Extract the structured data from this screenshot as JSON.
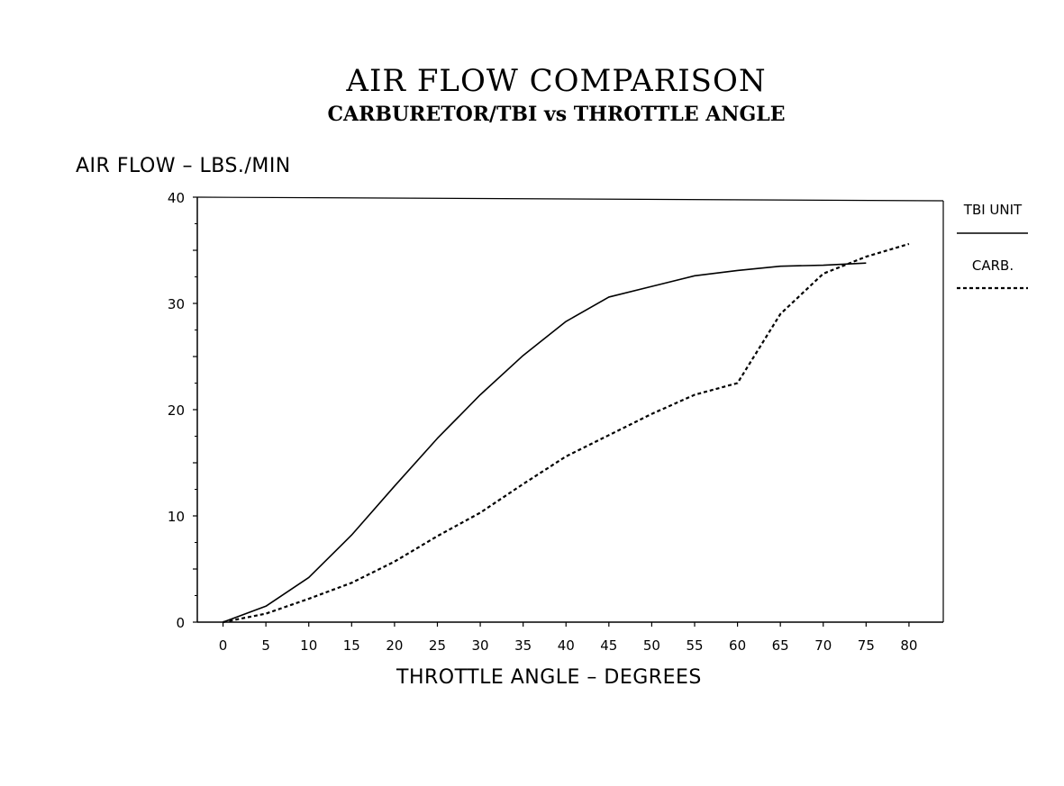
{
  "chart_data": {
    "type": "line",
    "title": "AIR FLOW COMPARISON",
    "subtitle": "CARBURETOR/TBI vs THROTTLE ANGLE",
    "xlabel": "THROTTLE ANGLE – DEGREES",
    "ylabel": "AIR FLOW – LBS./MIN",
    "x": [
      0,
      5,
      10,
      15,
      20,
      25,
      30,
      35,
      40,
      45,
      50,
      55,
      60,
      65,
      70,
      75,
      80
    ],
    "x_ticks": [
      "0",
      "5",
      "10",
      "15",
      "20",
      "25",
      "30",
      "35",
      "40",
      "45",
      "50",
      "55",
      "60",
      "65",
      "70",
      "75",
      "80"
    ],
    "y_ticks": [
      "0",
      "10",
      "20",
      "30",
      "40"
    ],
    "xlim": [
      -3,
      84
    ],
    "ylim": [
      0,
      40
    ],
    "grid": false,
    "legend_position": "right",
    "series": [
      {
        "name": "TBI UNIT",
        "style": "solid",
        "x": [
          0,
          5,
          10,
          15,
          20,
          25,
          30,
          35,
          40,
          45,
          50,
          55,
          60,
          65,
          70,
          75
        ],
        "values": [
          0,
          1.5,
          4.2,
          8.2,
          12.8,
          17.3,
          21.4,
          25.1,
          28.3,
          30.6,
          31.6,
          32.6,
          33.1,
          33.5,
          33.6,
          33.8
        ]
      },
      {
        "name": "CARB.",
        "style": "dashed",
        "x": [
          0,
          5,
          10,
          15,
          20,
          25,
          30,
          35,
          40,
          45,
          50,
          55,
          60,
          65,
          70,
          75,
          80
        ],
        "values": [
          0,
          0.8,
          2.2,
          3.7,
          5.7,
          8.1,
          10.3,
          13.0,
          15.6,
          17.6,
          19.6,
          21.4,
          22.5,
          29.0,
          32.8,
          34.4,
          35.6
        ]
      }
    ]
  }
}
